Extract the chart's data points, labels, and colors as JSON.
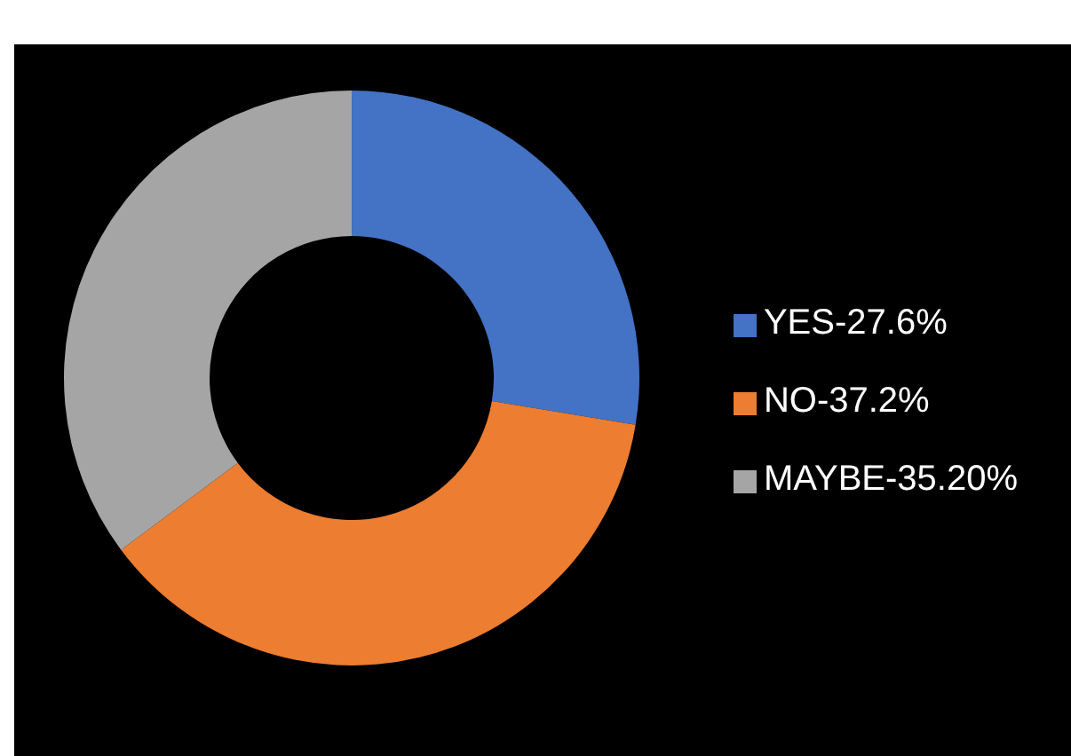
{
  "chart_data": {
    "type": "donut",
    "categories": [
      "YES-27.6%",
      "NO-37.2%",
      "MAYBE-35.20%"
    ],
    "values": [
      27.6,
      37.2,
      35.2
    ],
    "colors": [
      "#4472c4",
      "#ed7d31",
      "#a5a5a5"
    ],
    "legend": "right"
  }
}
